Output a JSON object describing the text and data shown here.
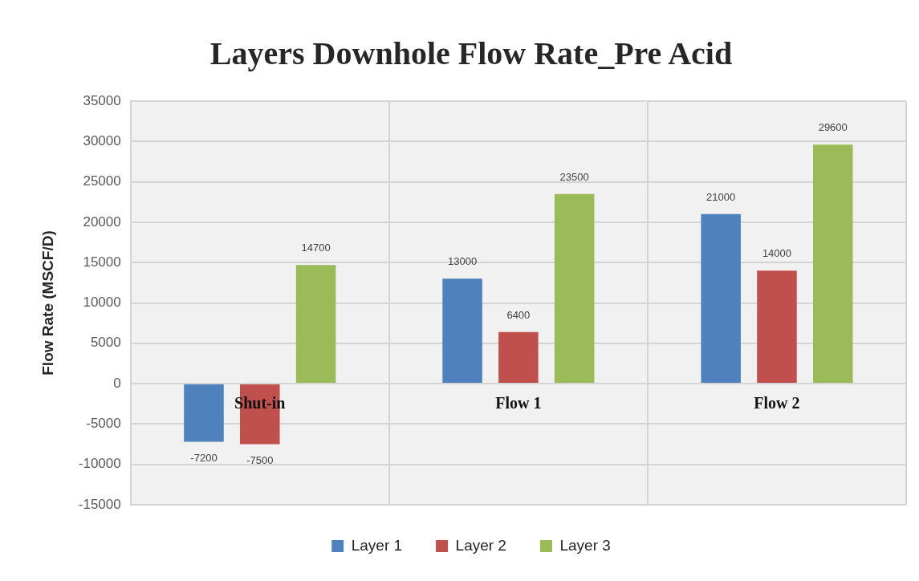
{
  "chart_data": {
    "type": "bar",
    "title": "Layers Downhole Flow Rate_Pre Acid",
    "ylabel": "Flow Rate (MSCF/D)",
    "categories": [
      "Shut-in",
      "Flow 1",
      "Flow 2"
    ],
    "series": [
      {
        "name": "Layer 1",
        "color": "#4f81bd",
        "values": [
          -7200,
          13000,
          21000
        ]
      },
      {
        "name": "Layer 2",
        "color": "#c0504d",
        "values": [
          -7500,
          6400,
          14000
        ]
      },
      {
        "name": "Layer 3",
        "color": "#9bbb59",
        "values": [
          14700,
          23500,
          29600
        ]
      }
    ],
    "ylim": [
      -15000,
      35000
    ],
    "yticks": [
      -15000,
      -10000,
      -5000,
      0,
      5000,
      10000,
      15000,
      20000,
      25000,
      30000,
      35000
    ],
    "grid": true,
    "legend": "bottom",
    "data_labels": true
  }
}
